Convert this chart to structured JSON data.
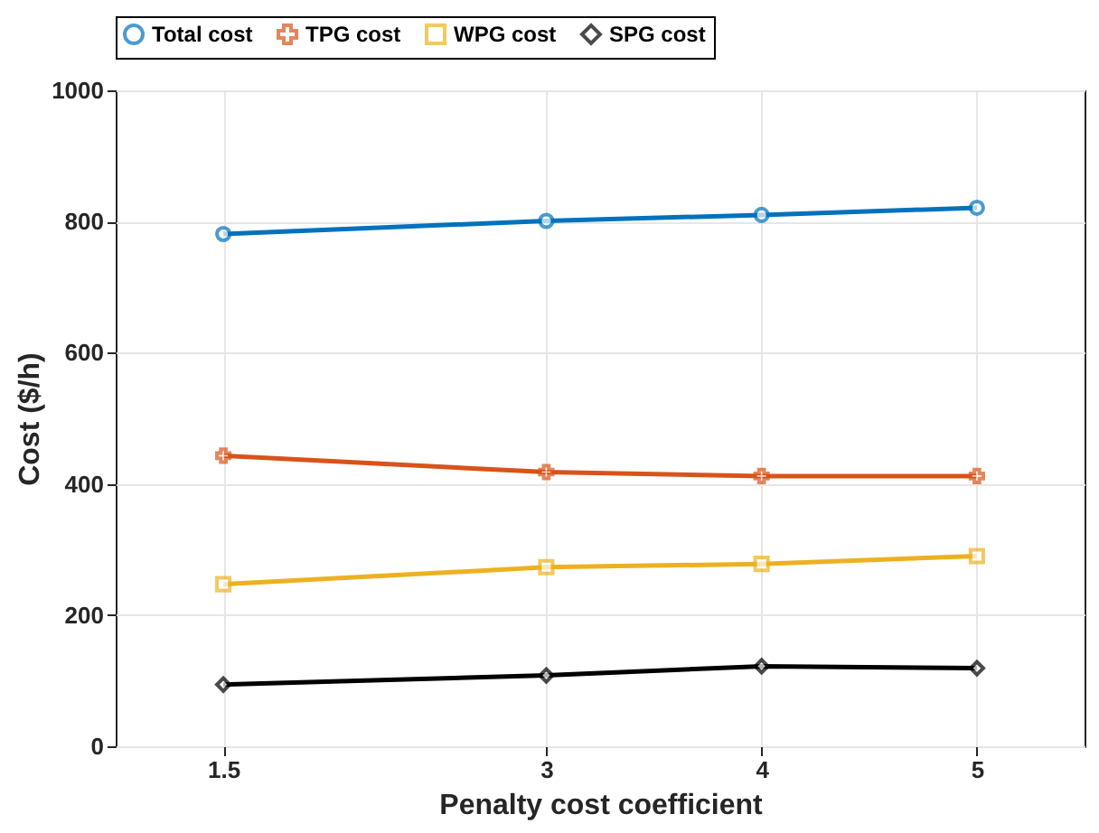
{
  "chart_data": {
    "type": "line",
    "xlabel": "Penalty cost coefficient",
    "ylabel": "Cost ($/h)",
    "x": [
      1.5,
      3,
      4,
      5
    ],
    "xlim": [
      1,
      5.5
    ],
    "xticks": [
      1.5,
      3,
      4,
      5
    ],
    "ylim": [
      0,
      1000
    ],
    "yticks": [
      0,
      200,
      400,
      600,
      800,
      1000
    ],
    "grid": true,
    "legend": "top",
    "line_style": "solid",
    "series": [
      {
        "name": "Total cost",
        "color": "#0072bd",
        "marker": "circle",
        "values": [
          781,
          801,
          810,
          821
        ]
      },
      {
        "name": "TPG cost",
        "color": "#d95319",
        "marker": "cross",
        "values": [
          443,
          418,
          412,
          412
        ]
      },
      {
        "name": "WPG cost",
        "color": "#edb120",
        "marker": "square",
        "values": [
          247,
          273,
          278,
          290
        ]
      },
      {
        "name": "SPG cost",
        "color": "#000000",
        "marker": "diamond",
        "values": [
          94,
          108,
          122,
          119
        ]
      }
    ]
  }
}
